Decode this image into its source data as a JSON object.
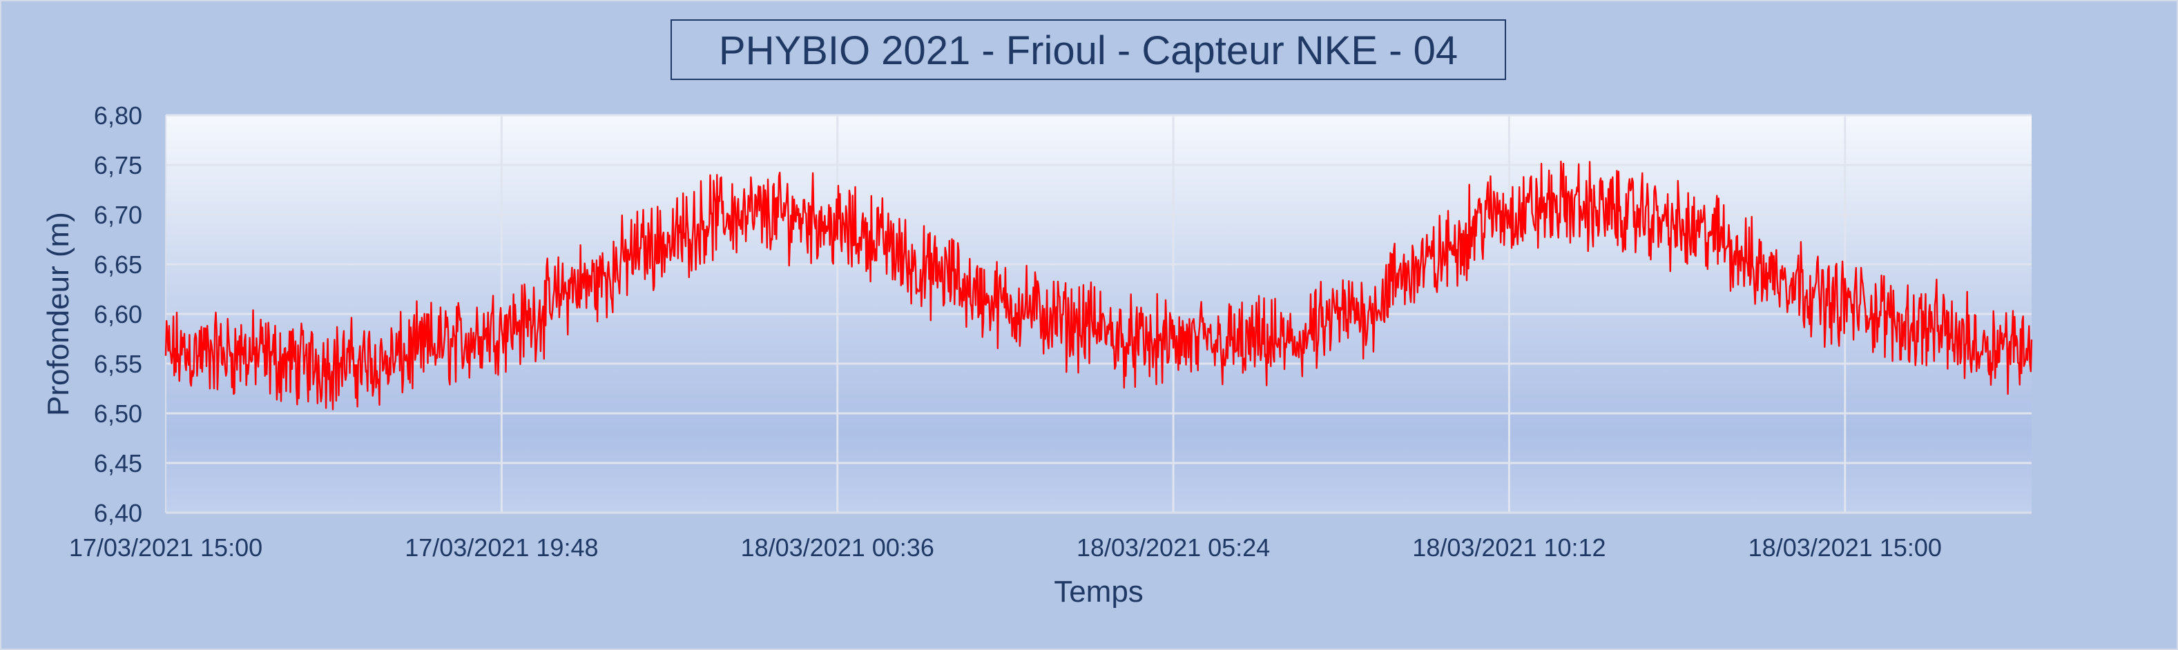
{
  "chart_data": {
    "type": "line",
    "title": "PHYBIO 2021 - Frioul - Capteur NKE - 04",
    "xlabel": "Temps",
    "ylabel": "Profondeur (m)",
    "ylim": [
      6.4,
      6.8
    ],
    "xlim": [
      "17/03/2021 15:00",
      "18/03/2021 17:40"
    ],
    "y_ticks": [
      "6,40",
      "6,45",
      "6,50",
      "6,55",
      "6,60",
      "6,65",
      "6,70",
      "6,75",
      "6,80"
    ],
    "x_ticks": [
      "17/03/2021 15:00",
      "17/03/2021 19:48",
      "18/03/2021 00:36",
      "18/03/2021 05:24",
      "18/03/2021 10:12",
      "18/03/2021 15:00"
    ],
    "grid": true,
    "legend": "none",
    "series": [
      {
        "color": "#ff0000",
        "x": [
          "17/03/2021 15:00",
          "17/03/2021 16:00",
          "17/03/2021 17:00",
          "17/03/2021 18:00",
          "17/03/2021 19:00",
          "17/03/2021 20:00",
          "17/03/2021 21:00",
          "17/03/2021 22:00",
          "17/03/2021 23:00",
          "18/03/2021 00:00",
          "18/03/2021 01:00",
          "18/03/2021 02:00",
          "18/03/2021 03:00",
          "18/03/2021 04:00",
          "18/03/2021 05:00",
          "18/03/2021 06:00",
          "18/03/2021 07:00",
          "18/03/2021 08:00",
          "18/03/2021 09:00",
          "18/03/2021 10:00",
          "18/03/2021 11:00",
          "18/03/2021 12:00",
          "18/03/2021 13:00",
          "18/03/2021 14:00",
          "18/03/2021 15:00",
          "18/03/2021 16:00",
          "18/03/2021 17:00",
          "18/03/2021 17:40"
        ],
        "values": [
          6.56,
          6.56,
          6.55,
          6.55,
          6.57,
          6.59,
          6.63,
          6.67,
          6.7,
          6.7,
          6.68,
          6.64,
          6.61,
          6.59,
          6.57,
          6.57,
          6.57,
          6.6,
          6.65,
          6.7,
          6.71,
          6.7,
          6.68,
          6.64,
          6.61,
          6.59,
          6.57,
          6.57
        ],
        "noise_amplitude": 0.05
      }
    ]
  }
}
